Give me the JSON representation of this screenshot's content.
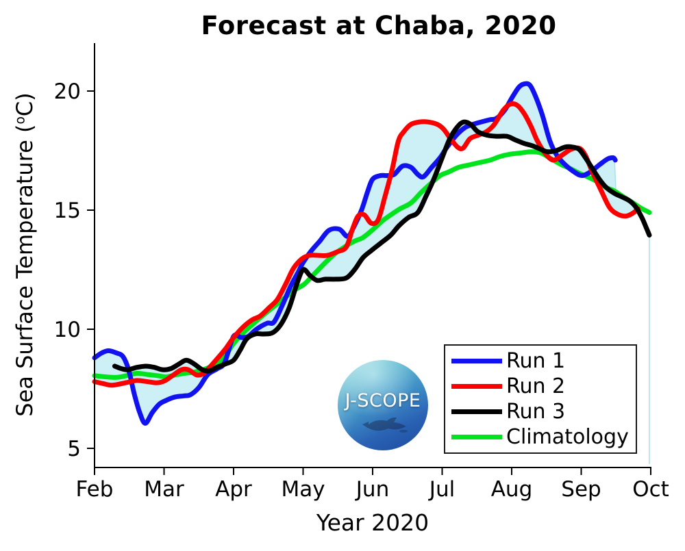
{
  "title": "Forecast at Chaba, 2020",
  "axes": {
    "ylabel_prefix": "Sea Surface Temperature (",
    "ylabel_sup": "o",
    "ylabel_suffix": "C)",
    "xlabel": "Year 2020",
    "x_tick_labels": [
      "Feb",
      "Mar",
      "Apr",
      "May",
      "Jun",
      "Jul",
      "Aug",
      "Sep",
      "Oct"
    ],
    "y_tick_labels": [
      "5",
      "10",
      "15",
      "20"
    ]
  },
  "legend": {
    "items": [
      {
        "label": "Run 1",
        "color": "#1212f0"
      },
      {
        "label": "Run 2",
        "color": "#fb0000"
      },
      {
        "label": "Run 3",
        "color": "#000000"
      },
      {
        "label": "Climatology",
        "color": "#00e41e"
      }
    ]
  },
  "logo": {
    "text": "J-SCOPE"
  },
  "chart_data": {
    "type": "line",
    "title": "Forecast at Chaba, 2020",
    "xlabel": "Year 2020",
    "ylabel": "Sea Surface Temperature (°C)",
    "x_unit": "month of 2020 (2 = Feb 1 ... 10 = Oct 1)",
    "xlim": [
      2,
      10
    ],
    "ylim": [
      4.2,
      22.0
    ],
    "x_ticks": [
      2,
      3,
      4,
      5,
      6,
      7,
      8,
      9,
      10
    ],
    "x_tick_labels": [
      "Feb",
      "Mar",
      "Apr",
      "May",
      "Jun",
      "Jul",
      "Aug",
      "Sep",
      "Oct"
    ],
    "y_ticks": [
      5,
      10,
      15,
      20
    ],
    "grid": false,
    "legend_position": "lower right inside plot",
    "envelope": {
      "description": "light-cyan shaded min-max spread across Run 1, Run 2, Run 3; closes with a thin vertical edge near Oct",
      "fill": "#cdf0f7",
      "edge": "#abe0ea"
    },
    "series": [
      {
        "name": "Run 1",
        "color": "#1212f0",
        "width": 7,
        "points": [
          [
            2.0,
            8.8
          ],
          [
            2.1,
            9.0
          ],
          [
            2.2,
            9.1
          ],
          [
            2.32,
            9.0
          ],
          [
            2.41,
            8.85
          ],
          [
            2.49,
            8.3
          ],
          [
            2.57,
            7.3
          ],
          [
            2.65,
            6.5
          ],
          [
            2.73,
            6.05
          ],
          [
            2.83,
            6.5
          ],
          [
            2.93,
            6.85
          ],
          [
            3.02,
            7.0
          ],
          [
            3.15,
            7.15
          ],
          [
            3.28,
            7.2
          ],
          [
            3.38,
            7.25
          ],
          [
            3.5,
            7.55
          ],
          [
            3.63,
            8.1
          ],
          [
            3.77,
            8.35
          ],
          [
            3.87,
            8.6
          ],
          [
            4.0,
            9.7
          ],
          [
            4.11,
            9.65
          ],
          [
            4.21,
            9.7
          ],
          [
            4.33,
            10.0
          ],
          [
            4.48,
            10.25
          ],
          [
            4.58,
            10.3
          ],
          [
            4.7,
            11.0
          ],
          [
            4.82,
            11.8
          ],
          [
            4.93,
            12.4
          ],
          [
            5.0,
            12.8
          ],
          [
            5.12,
            13.3
          ],
          [
            5.24,
            13.7
          ],
          [
            5.37,
            14.15
          ],
          [
            5.52,
            14.2
          ],
          [
            5.64,
            13.9
          ],
          [
            5.73,
            14.3
          ],
          [
            5.84,
            15.0
          ],
          [
            5.93,
            15.8
          ],
          [
            6.0,
            16.3
          ],
          [
            6.11,
            16.45
          ],
          [
            6.21,
            16.45
          ],
          [
            6.31,
            16.5
          ],
          [
            6.43,
            16.85
          ],
          [
            6.55,
            16.8
          ],
          [
            6.65,
            16.5
          ],
          [
            6.73,
            16.4
          ],
          [
            6.85,
            16.8
          ],
          [
            6.97,
            17.2
          ],
          [
            7.06,
            17.6
          ],
          [
            7.19,
            18.1
          ],
          [
            7.32,
            18.45
          ],
          [
            7.44,
            18.6
          ],
          [
            7.56,
            18.7
          ],
          [
            7.69,
            18.8
          ],
          [
            7.78,
            18.85
          ],
          [
            7.9,
            19.2
          ],
          [
            8.0,
            19.7
          ],
          [
            8.1,
            20.15
          ],
          [
            8.18,
            20.3
          ],
          [
            8.26,
            20.25
          ],
          [
            8.34,
            19.8
          ],
          [
            8.44,
            19.0
          ],
          [
            8.55,
            17.9
          ],
          [
            8.65,
            17.3
          ],
          [
            8.77,
            16.9
          ],
          [
            8.9,
            16.6
          ],
          [
            9.01,
            16.45
          ],
          [
            9.13,
            16.6
          ],
          [
            9.26,
            16.9
          ],
          [
            9.38,
            17.15
          ],
          [
            9.46,
            17.2
          ],
          [
            9.49,
            17.1
          ]
        ]
      },
      {
        "name": "Run 2",
        "color": "#fb0000",
        "width": 7,
        "points": [
          [
            2.0,
            7.8
          ],
          [
            2.12,
            7.72
          ],
          [
            2.24,
            7.65
          ],
          [
            2.36,
            7.7
          ],
          [
            2.49,
            7.78
          ],
          [
            2.61,
            7.85
          ],
          [
            2.76,
            7.8
          ],
          [
            2.89,
            7.75
          ],
          [
            3.0,
            7.82
          ],
          [
            3.12,
            8.05
          ],
          [
            3.25,
            8.3
          ],
          [
            3.35,
            8.3
          ],
          [
            3.47,
            8.08
          ],
          [
            3.57,
            8.15
          ],
          [
            3.67,
            8.45
          ],
          [
            3.79,
            8.85
          ],
          [
            3.89,
            9.2
          ],
          [
            4.0,
            9.65
          ],
          [
            4.14,
            10.1
          ],
          [
            4.27,
            10.4
          ],
          [
            4.38,
            10.55
          ],
          [
            4.51,
            10.9
          ],
          [
            4.63,
            11.25
          ],
          [
            4.75,
            11.9
          ],
          [
            4.86,
            12.55
          ],
          [
            4.98,
            12.95
          ],
          [
            5.09,
            13.1
          ],
          [
            5.22,
            13.1
          ],
          [
            5.35,
            13.1
          ],
          [
            5.49,
            13.25
          ],
          [
            5.62,
            13.45
          ],
          [
            5.71,
            14.2
          ],
          [
            5.79,
            14.75
          ],
          [
            5.88,
            14.8
          ],
          [
            5.98,
            14.45
          ],
          [
            6.08,
            14.6
          ],
          [
            6.18,
            15.6
          ],
          [
            6.28,
            16.7
          ],
          [
            6.37,
            17.9
          ],
          [
            6.45,
            18.3
          ],
          [
            6.55,
            18.6
          ],
          [
            6.67,
            18.7
          ],
          [
            6.8,
            18.7
          ],
          [
            6.93,
            18.6
          ],
          [
            7.02,
            18.4
          ],
          [
            7.12,
            18.0
          ],
          [
            7.22,
            17.65
          ],
          [
            7.3,
            17.6
          ],
          [
            7.4,
            18.0
          ],
          [
            7.52,
            18.15
          ],
          [
            7.64,
            18.3
          ],
          [
            7.75,
            18.6
          ],
          [
            7.88,
            19.2
          ],
          [
            7.98,
            19.45
          ],
          [
            8.08,
            19.4
          ],
          [
            8.18,
            19.05
          ],
          [
            8.28,
            18.5
          ],
          [
            8.37,
            17.9
          ],
          [
            8.49,
            17.35
          ],
          [
            8.6,
            17.1
          ],
          [
            8.72,
            17.3
          ],
          [
            8.85,
            17.55
          ],
          [
            8.97,
            17.6
          ],
          [
            9.06,
            17.3
          ],
          [
            9.16,
            16.6
          ],
          [
            9.29,
            15.8
          ],
          [
            9.41,
            15.1
          ],
          [
            9.53,
            14.82
          ],
          [
            9.64,
            14.75
          ],
          [
            9.73,
            14.85
          ],
          [
            9.82,
            15.05
          ]
        ]
      },
      {
        "name": "Run 3",
        "color": "#000000",
        "width": 7,
        "points": [
          [
            2.29,
            8.45
          ],
          [
            2.38,
            8.35
          ],
          [
            2.48,
            8.3
          ],
          [
            2.61,
            8.4
          ],
          [
            2.74,
            8.45
          ],
          [
            2.86,
            8.4
          ],
          [
            2.98,
            8.3
          ],
          [
            3.1,
            8.35
          ],
          [
            3.22,
            8.55
          ],
          [
            3.32,
            8.7
          ],
          [
            3.43,
            8.55
          ],
          [
            3.55,
            8.3
          ],
          [
            3.65,
            8.25
          ],
          [
            3.76,
            8.4
          ],
          [
            3.89,
            8.55
          ],
          [
            4.0,
            8.7
          ],
          [
            4.09,
            9.1
          ],
          [
            4.19,
            9.6
          ],
          [
            4.31,
            9.8
          ],
          [
            4.43,
            9.8
          ],
          [
            4.56,
            9.85
          ],
          [
            4.68,
            10.2
          ],
          [
            4.8,
            10.9
          ],
          [
            4.91,
            11.9
          ],
          [
            5.0,
            12.5
          ],
          [
            5.1,
            12.25
          ],
          [
            5.2,
            12.05
          ],
          [
            5.32,
            12.1
          ],
          [
            5.47,
            12.1
          ],
          [
            5.62,
            12.15
          ],
          [
            5.74,
            12.5
          ],
          [
            5.86,
            13.0
          ],
          [
            5.98,
            13.3
          ],
          [
            6.11,
            13.6
          ],
          [
            6.26,
            13.95
          ],
          [
            6.38,
            14.35
          ],
          [
            6.52,
            14.7
          ],
          [
            6.65,
            14.9
          ],
          [
            6.77,
            15.6
          ],
          [
            6.88,
            16.3
          ],
          [
            7.0,
            17.2
          ],
          [
            7.11,
            18.0
          ],
          [
            7.22,
            18.5
          ],
          [
            7.31,
            18.7
          ],
          [
            7.41,
            18.6
          ],
          [
            7.51,
            18.3
          ],
          [
            7.64,
            18.15
          ],
          [
            7.78,
            18.1
          ],
          [
            7.93,
            18.1
          ],
          [
            8.05,
            17.95
          ],
          [
            8.18,
            17.8
          ],
          [
            8.3,
            17.7
          ],
          [
            8.42,
            17.55
          ],
          [
            8.52,
            17.45
          ],
          [
            8.64,
            17.5
          ],
          [
            8.77,
            17.65
          ],
          [
            8.87,
            17.65
          ],
          [
            8.97,
            17.55
          ],
          [
            9.06,
            17.2
          ],
          [
            9.16,
            16.75
          ],
          [
            9.26,
            16.3
          ],
          [
            9.36,
            15.95
          ],
          [
            9.48,
            15.7
          ],
          [
            9.59,
            15.55
          ],
          [
            9.69,
            15.4
          ],
          [
            9.78,
            15.15
          ],
          [
            9.87,
            14.7
          ],
          [
            9.93,
            14.3
          ],
          [
            9.98,
            13.95
          ]
        ]
      },
      {
        "name": "Climatology",
        "color": "#00e41e",
        "width": 7,
        "points": [
          [
            2.0,
            8.05
          ],
          [
            2.17,
            8.0
          ],
          [
            2.32,
            7.98
          ],
          [
            2.46,
            8.05
          ],
          [
            2.61,
            8.15
          ],
          [
            2.76,
            8.1
          ],
          [
            2.91,
            8.05
          ],
          [
            3.03,
            8.0
          ],
          [
            3.16,
            8.08
          ],
          [
            3.3,
            8.15
          ],
          [
            3.43,
            8.2
          ],
          [
            3.56,
            8.3
          ],
          [
            3.69,
            8.45
          ],
          [
            3.81,
            8.65
          ],
          [
            3.92,
            9.05
          ],
          [
            4.0,
            9.4
          ],
          [
            4.14,
            9.85
          ],
          [
            4.29,
            10.25
          ],
          [
            4.43,
            10.6
          ],
          [
            4.58,
            10.95
          ],
          [
            4.73,
            11.3
          ],
          [
            4.88,
            11.65
          ],
          [
            5.02,
            11.9
          ],
          [
            5.17,
            12.35
          ],
          [
            5.32,
            12.8
          ],
          [
            5.47,
            13.2
          ],
          [
            5.62,
            13.5
          ],
          [
            5.74,
            13.7
          ],
          [
            5.86,
            13.85
          ],
          [
            6.01,
            14.2
          ],
          [
            6.14,
            14.55
          ],
          [
            6.26,
            14.8
          ],
          [
            6.39,
            15.05
          ],
          [
            6.55,
            15.3
          ],
          [
            6.7,
            15.75
          ],
          [
            6.83,
            16.1
          ],
          [
            6.97,
            16.45
          ],
          [
            7.09,
            16.6
          ],
          [
            7.24,
            16.8
          ],
          [
            7.39,
            16.9
          ],
          [
            7.54,
            17.0
          ],
          [
            7.69,
            17.1
          ],
          [
            7.83,
            17.25
          ],
          [
            7.98,
            17.35
          ],
          [
            8.13,
            17.4
          ],
          [
            8.28,
            17.45
          ],
          [
            8.42,
            17.4
          ],
          [
            8.57,
            17.15
          ],
          [
            8.72,
            16.9
          ],
          [
            8.84,
            16.75
          ],
          [
            8.97,
            16.55
          ],
          [
            9.09,
            16.4
          ],
          [
            9.23,
            16.2
          ],
          [
            9.36,
            15.95
          ],
          [
            9.48,
            15.8
          ],
          [
            9.61,
            15.55
          ],
          [
            9.72,
            15.35
          ],
          [
            9.85,
            15.1
          ],
          [
            9.98,
            14.9
          ]
        ]
      }
    ]
  }
}
